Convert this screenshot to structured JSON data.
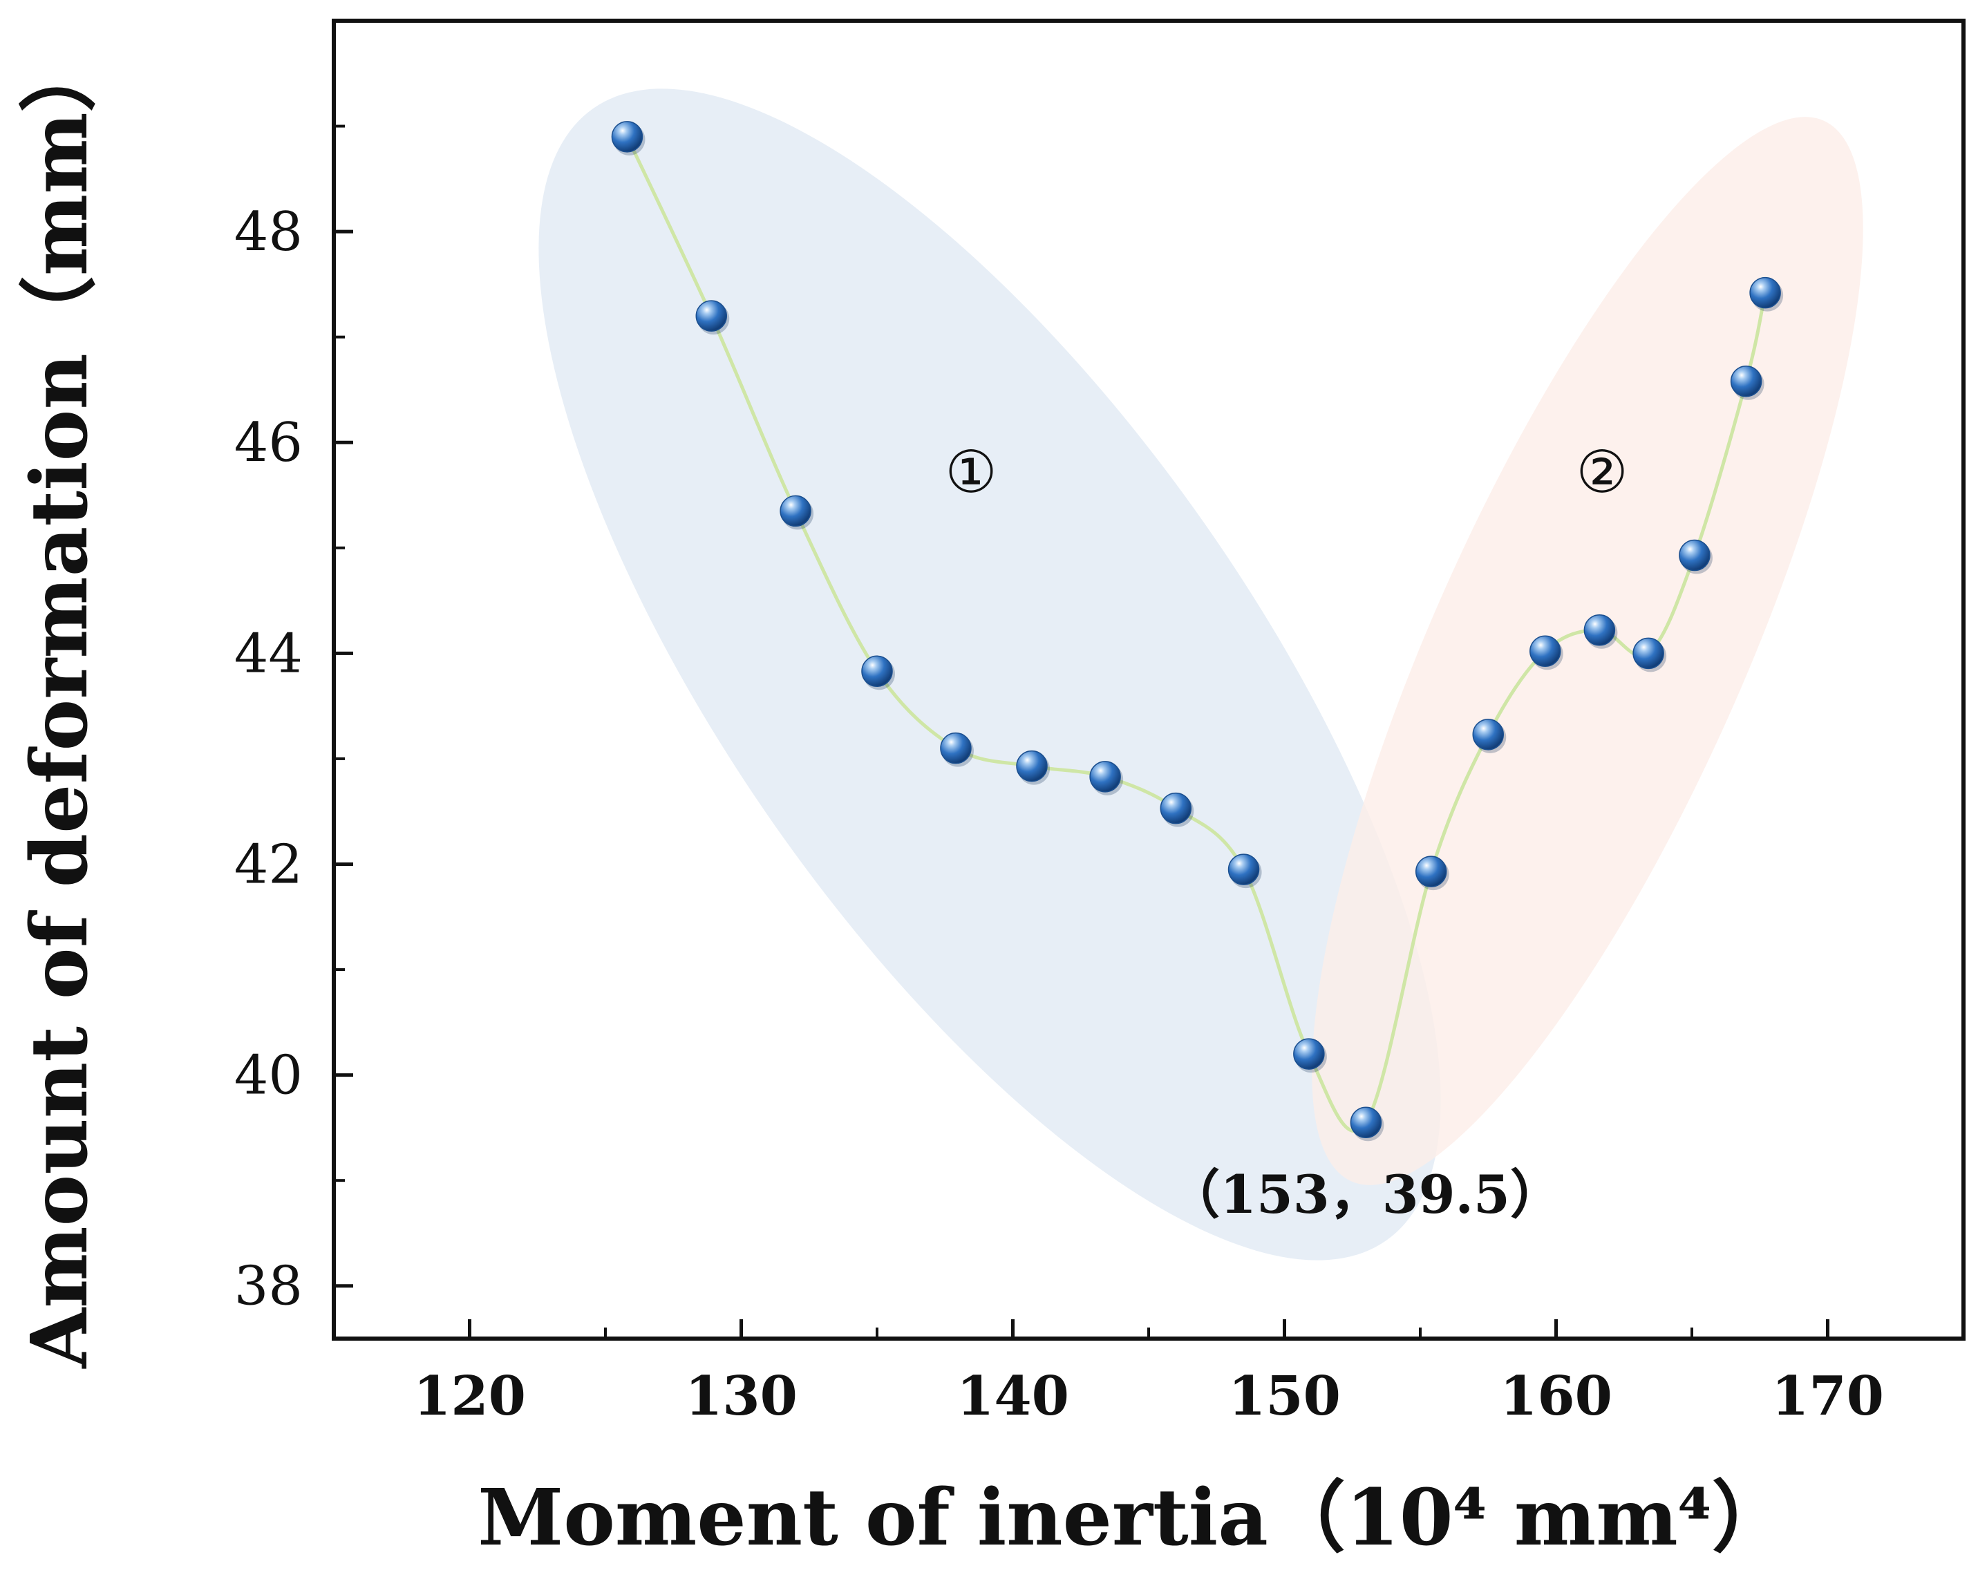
{
  "chart_data": {
    "type": "line",
    "title": "",
    "xlabel": "Moment of inertia",
    "xlabel_unit": "（10⁴ mm⁴）",
    "ylabel": "Amount of deformation（mm）",
    "xlim": [
      115,
      175
    ],
    "ylim": [
      37.5,
      50
    ],
    "xticks": [
      120,
      130,
      140,
      150,
      160,
      170
    ],
    "yticks": [
      38,
      40,
      42,
      44,
      46,
      48
    ],
    "grid": false,
    "series": [
      {
        "name": "deformation",
        "line_color": "#cfe6a6",
        "marker_color": "#2f72c2",
        "x": [
          125.8,
          128.9,
          132.0,
          135.0,
          137.9,
          140.7,
          143.4,
          146.0,
          148.5,
          150.9,
          153.0,
          155.4,
          157.5,
          159.6,
          161.6,
          163.4,
          165.1,
          167.0,
          167.7
        ],
        "y": [
          48.9,
          47.2,
          45.35,
          43.83,
          43.1,
          42.93,
          42.83,
          42.53,
          41.95,
          40.2,
          39.55,
          41.93,
          43.23,
          44.02,
          44.22,
          44.0,
          44.93,
          46.58,
          47.42
        ]
      }
    ],
    "regions": [
      {
        "label": "①",
        "color": "#e3ebf5"
      },
      {
        "label": "②",
        "color": "#fdeee9"
      }
    ],
    "annotations": [
      {
        "text": "（153，39.5）",
        "x": 153,
        "y": 39.5
      }
    ]
  }
}
